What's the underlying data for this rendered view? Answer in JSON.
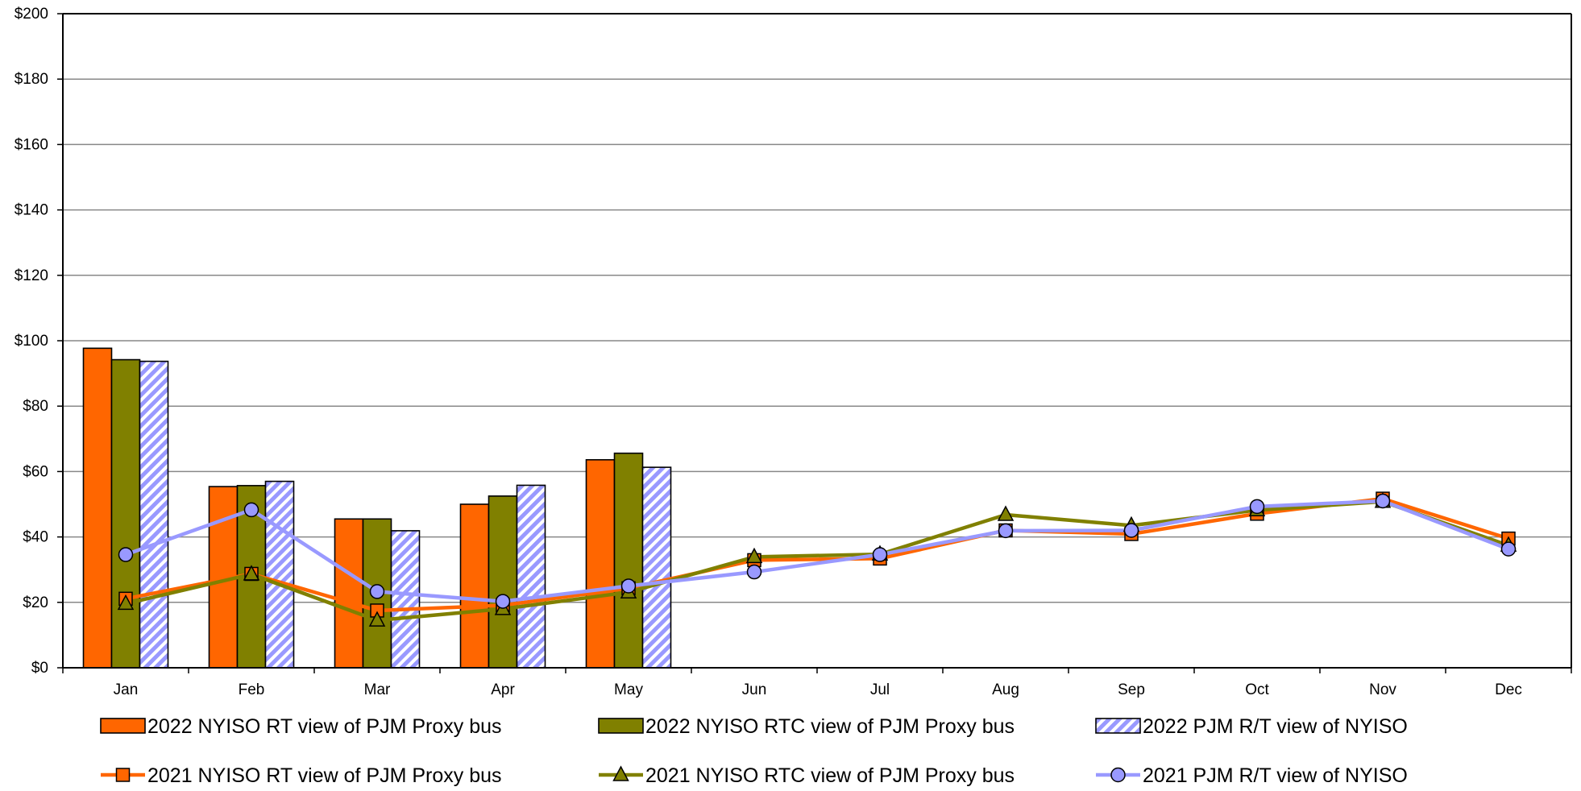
{
  "chart_data": {
    "type": "bar",
    "categories": [
      "Jan",
      "Feb",
      "Mar",
      "Apr",
      "May",
      "Jun",
      "Jul",
      "Aug",
      "Sep",
      "Oct",
      "Nov",
      "Dec"
    ],
    "ylim": [
      0,
      200
    ],
    "yticks": [
      0,
      20,
      40,
      60,
      80,
      100,
      120,
      140,
      160,
      180,
      200
    ],
    "ytick_labels": [
      "$0",
      "$20",
      "$40",
      "$60",
      "$80",
      "$100",
      "$120",
      "$140",
      "$160",
      "$180",
      "$200"
    ],
    "grid": true,
    "legend_position": "bottom",
    "bar_series": [
      {
        "name": "2022 NYISO RT view of PJM Proxy bus",
        "color": "#FF6600",
        "pattern": "solid",
        "values": [
          97.7,
          55.4,
          45.5,
          50.0,
          63.6,
          null,
          null,
          null,
          null,
          null,
          null,
          null
        ]
      },
      {
        "name": "2022 NYISO RTC view of PJM Proxy bus",
        "color": "#808000",
        "pattern": "solid",
        "values": [
          94.2,
          55.7,
          45.5,
          52.5,
          65.6,
          null,
          null,
          null,
          null,
          null,
          null,
          null
        ]
      },
      {
        "name": "2022 PJM R/T view of NYISO",
        "color": "#9999FF",
        "pattern": "hatch",
        "values": [
          93.7,
          57.0,
          41.9,
          55.8,
          61.3,
          null,
          null,
          null,
          null,
          null,
          null,
          null
        ]
      }
    ],
    "line_series": [
      {
        "name": "2021 NYISO RT view of PJM Proxy bus",
        "color": "#FF6600",
        "marker": "square",
        "values": [
          21.1,
          28.7,
          17.5,
          19.1,
          24.3,
          32.9,
          33.4,
          42.0,
          40.9,
          47.1,
          51.7,
          39.5
        ]
      },
      {
        "name": "2021 NYISO RTC view of PJM Proxy bus",
        "color": "#808000",
        "marker": "triangle",
        "values": [
          19.6,
          28.6,
          14.5,
          18.0,
          23.1,
          33.9,
          34.7,
          46.8,
          43.5,
          48.2,
          50.8,
          37.4
        ]
      },
      {
        "name": "2021 PJM R/T view of NYISO",
        "color": "#9999FF",
        "marker": "circle",
        "values": [
          34.6,
          48.3,
          23.3,
          20.3,
          25.0,
          29.3,
          34.6,
          41.9,
          42.0,
          49.3,
          51.0,
          36.3
        ]
      }
    ]
  }
}
